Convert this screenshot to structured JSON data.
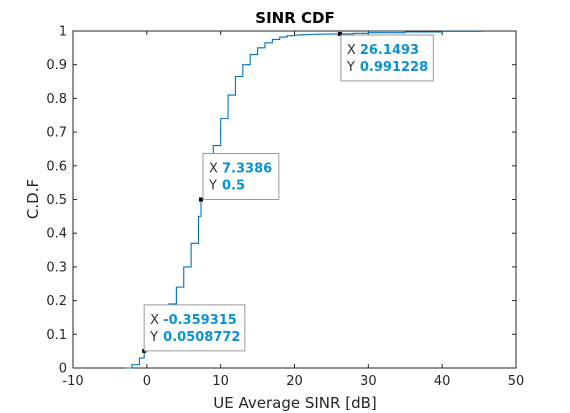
{
  "chart_data": {
    "type": "line",
    "title": "SINR CDF",
    "xlabel": "UE Average SINR [dB]",
    "ylabel": "C.D.F",
    "xlim": [
      -10,
      50
    ],
    "ylim": [
      0,
      1
    ],
    "xticks": [
      "-10",
      "0",
      "10",
      "20",
      "30",
      "40",
      "50"
    ],
    "yticks": [
      "0",
      "0.1",
      "0.2",
      "0.3",
      "0.4",
      "0.5",
      "0.6",
      "0.7",
      "0.8",
      "0.9",
      "1"
    ],
    "grid": false,
    "series_color": "#0072bd",
    "series": [
      {
        "x": [
          -3.0,
          -2.0,
          -1.0,
          -0.359315,
          0.0,
          1.0,
          2.0,
          3.0,
          4.0,
          5.0,
          6.0,
          7.0,
          7.3386,
          8.0,
          9.0,
          10.0,
          11.0,
          12.0,
          13.0,
          14.0,
          15.0,
          16.0,
          17.0,
          18.0,
          19.0,
          20.0,
          21.0,
          22.0,
          23.0,
          24.0,
          25.0,
          26.1493,
          28.0,
          30.0,
          35.0,
          40.0,
          45.5
        ],
        "y": [
          0.0,
          0.01,
          0.03,
          0.0508772,
          0.065,
          0.1,
          0.14,
          0.19,
          0.24,
          0.3,
          0.37,
          0.45,
          0.5,
          0.57,
          0.66,
          0.74,
          0.81,
          0.865,
          0.9,
          0.93,
          0.95,
          0.965,
          0.975,
          0.982,
          0.986,
          0.988,
          0.989,
          0.99,
          0.9905,
          0.991,
          0.9912,
          0.991228,
          0.993,
          0.995,
          0.997,
          0.999,
          1.0
        ]
      }
    ],
    "datatips": [
      {
        "x_key": "X",
        "x_value": "-0.359315",
        "y_key": "Y",
        "y_value": "0.0508772",
        "x": -0.359315,
        "y": 0.0508772
      },
      {
        "x_key": "X",
        "x_value": "7.3386",
        "y_key": "Y",
        "y_value": "0.5",
        "x": 7.3386,
        "y": 0.5
      },
      {
        "x_key": "X",
        "x_value": "26.1493",
        "y_key": "Y",
        "y_value": "0.991228",
        "x": 26.1493,
        "y": 0.991228
      }
    ]
  }
}
